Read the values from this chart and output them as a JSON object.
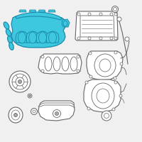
{
  "bg": "#f0f0f0",
  "hc": "#3ec8e0",
  "he": "#1a8aaa",
  "oc": "#aaaaaa",
  "oe": "#666666",
  "white": "#ffffff"
}
